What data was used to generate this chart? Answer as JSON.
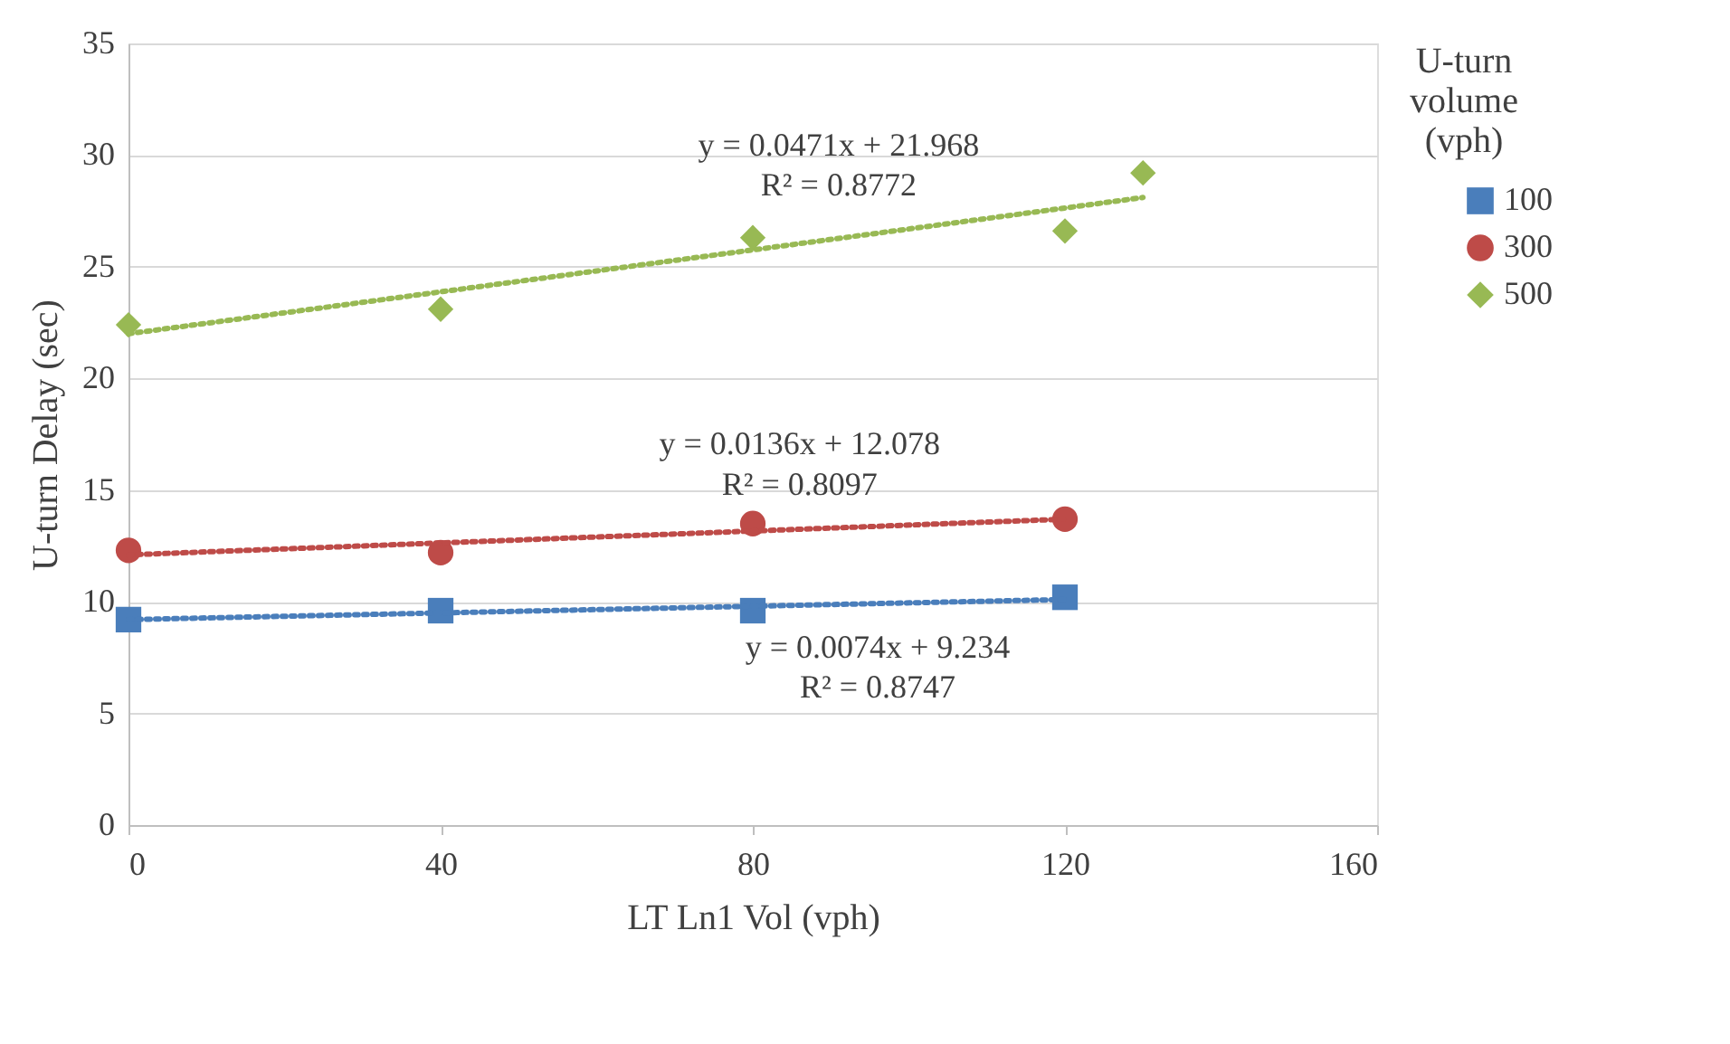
{
  "chart_data": {
    "type": "scatter",
    "xlabel": "LT Ln1 Vol (vph)",
    "ylabel": "U-turn Delay (sec)",
    "legend_title": "U-turn volume (vph)",
    "xlim": [
      0,
      160
    ],
    "xticks": [
      0,
      40,
      80,
      120,
      160
    ],
    "ylim": [
      0,
      35
    ],
    "yticks": [
      0,
      5,
      10,
      15,
      20,
      25,
      30,
      35
    ],
    "grid": "y",
    "legend": "right",
    "series": [
      {
        "name": "100",
        "color": "#4a7ebb",
        "marker": "square",
        "x": [
          0,
          40,
          80,
          120
        ],
        "values": [
          9.2,
          9.6,
          9.6,
          10.2
        ]
      },
      {
        "name": "300",
        "color": "#be4b48",
        "marker": "circle",
        "x": [
          0,
          40,
          80,
          120
        ],
        "values": [
          12.3,
          12.2,
          13.5,
          13.7
        ]
      },
      {
        "name": "500",
        "color": "#98b954",
        "marker": "diamond",
        "x": [
          0,
          40,
          80,
          120,
          130
        ],
        "values": [
          22.4,
          23.1,
          26.3,
          26.6,
          29.2
        ]
      },
      {
        "type": "line",
        "color": "#4a7ebb",
        "line_style": "dotted",
        "x": [
          0,
          120
        ],
        "values": [
          9.2,
          10.1
        ]
      },
      {
        "type": "line",
        "color": "#be4b48",
        "line_style": "dotted",
        "x": [
          0,
          120
        ],
        "values": [
          12.1,
          13.7
        ]
      },
      {
        "type": "line",
        "color": "#98b954",
        "line_style": "dotted",
        "x": [
          0,
          130
        ],
        "values": [
          22.0,
          28.1
        ]
      }
    ],
    "annotations": [
      "y = 0.0471x + 21.968",
      "R² = 0.8772",
      "y = 0.0136x + 12.078",
      "R² = 0.8097",
      "y = 0.0074x + 9.234",
      "R² = 0.8747"
    ]
  }
}
